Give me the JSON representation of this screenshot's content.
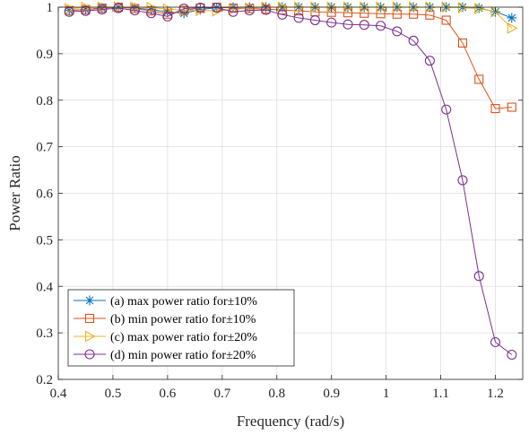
{
  "chart_data": {
    "type": "line",
    "xlabel": "Frequency (rad/s)",
    "ylabel": "Power Ratio",
    "xlim": [
      0.4,
      1.25
    ],
    "ylim": [
      0.2,
      1.0
    ],
    "x_ticks": [
      0.4,
      0.5,
      0.6,
      0.7,
      0.8,
      0.9,
      1,
      1.1,
      1.2
    ],
    "x_tick_labels": [
      "0.4",
      "0.5",
      "0.6",
      "0.7",
      "0.8",
      "0.9",
      "1",
      "1.1",
      "1.2"
    ],
    "y_ticks": [
      0.2,
      0.3,
      0.4,
      0.5,
      0.6,
      0.7,
      0.8,
      0.9,
      1.0
    ],
    "y_tick_labels": [
      "0.2",
      "0.3",
      "0.4",
      "0.5",
      "0.6",
      "0.7",
      "0.8",
      "0.9",
      "1"
    ],
    "grid": true,
    "legend_position": "bottom-left",
    "x": [
      0.42,
      0.45,
      0.48,
      0.51,
      0.54,
      0.57,
      0.6,
      0.63,
      0.66,
      0.69,
      0.72,
      0.75,
      0.78,
      0.81,
      0.84,
      0.87,
      0.9,
      0.93,
      0.96,
      0.99,
      1.02,
      1.05,
      1.08,
      1.11,
      1.14,
      1.17,
      1.2,
      1.23
    ],
    "series": [
      {
        "name": "(a) max power ratio for±10%",
        "color": "#0072BD",
        "marker": "asterisk",
        "values": [
          0.993,
          0.995,
          0.998,
          1.0,
          0.998,
          0.995,
          0.99,
          0.987,
          0.995,
          0.999,
          1.0,
          1.0,
          1.0,
          1.0,
          1.0,
          1.0,
          1.0,
          1.0,
          1.0,
          1.0,
          1.0,
          1.0,
          1.0,
          1.0,
          1.0,
          0.998,
          0.99,
          0.977
        ]
      },
      {
        "name": "(b) min power ratio for±10%",
        "color": "#D95319",
        "marker": "square",
        "values": [
          0.993,
          0.995,
          0.998,
          1.0,
          0.997,
          0.992,
          0.985,
          0.993,
          0.998,
          1.0,
          0.998,
          0.997,
          0.996,
          0.994,
          0.992,
          0.99,
          0.989,
          0.988,
          0.987,
          0.986,
          0.985,
          0.985,
          0.983,
          0.972,
          0.923,
          0.845,
          0.782,
          0.785
        ]
      },
      {
        "name": "(c) max power ratio for±20%",
        "color": "#EDB120",
        "marker": "triangle-right",
        "values": [
          0.997,
          0.999,
          1.0,
          1.0,
          1.0,
          0.999,
          0.996,
          0.993,
          0.993,
          0.992,
          0.995,
          0.998,
          1.0,
          1.0,
          1.0,
          1.0,
          1.0,
          1.0,
          1.0,
          1.0,
          1.0,
          1.0,
          1.0,
          1.0,
          0.999,
          0.997,
          0.99,
          0.955
        ]
      },
      {
        "name": "(d) min power ratio for±20%",
        "color": "#7E2F8E",
        "marker": "circle",
        "values": [
          0.99,
          0.992,
          0.995,
          0.998,
          0.993,
          0.987,
          0.98,
          0.997,
          0.999,
          0.999,
          0.99,
          0.993,
          0.994,
          0.984,
          0.977,
          0.972,
          0.967,
          0.963,
          0.962,
          0.96,
          0.948,
          0.928,
          0.885,
          0.78,
          0.628,
          0.422,
          0.28,
          0.253
        ]
      }
    ]
  }
}
